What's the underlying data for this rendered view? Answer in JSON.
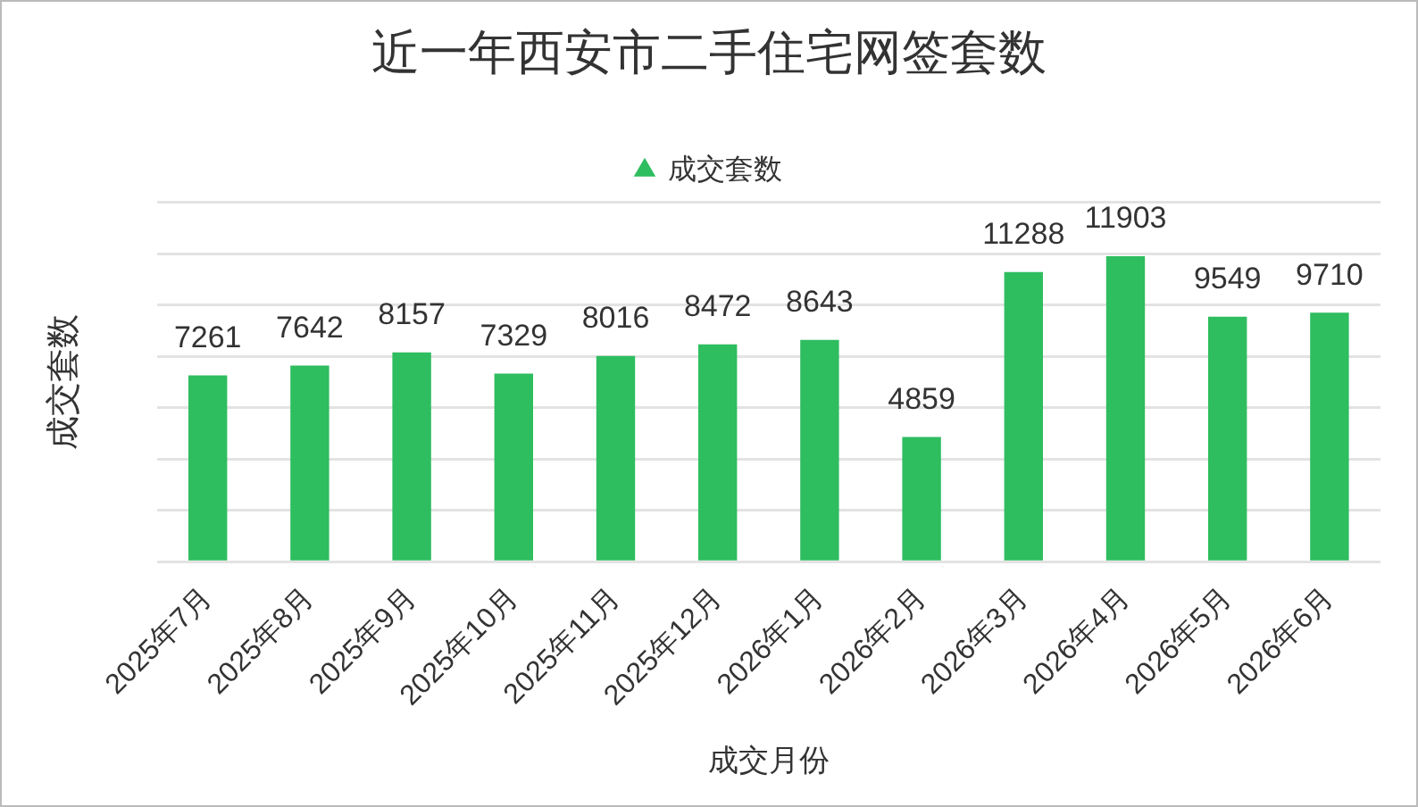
{
  "chart_data": {
    "type": "bar",
    "title": "近一年西安市二手住宅网签套数",
    "xlabel": "成交月份",
    "ylabel": "成交套数",
    "categories": [
      "2025年7月",
      "2025年8月",
      "2025年9月",
      "2025年10月",
      "2025年11月",
      "2025年12月",
      "2026年1月",
      "2026年2月",
      "2026年3月",
      "2026年4月",
      "2026年5月",
      "2026年6月"
    ],
    "series": [
      {
        "name": "成交套数",
        "color": "#2ebd5f",
        "values": [
          7261,
          7642,
          8157,
          7329,
          8016,
          8472,
          8643,
          4859,
          11288,
          11903,
          9549,
          9710
        ]
      }
    ],
    "ylim": [
      0,
      14000
    ],
    "yticks": [
      {
        "value": 0,
        "label": null
      },
      {
        "value": 2000,
        "label": null
      },
      {
        "value": 4000,
        "label": null
      },
      {
        "value": 6000,
        "label": null
      },
      {
        "value": 8000,
        "label": null
      },
      {
        "value": 10000,
        "label": null
      },
      {
        "value": 12000,
        "label": null
      },
      {
        "value": 14000,
        "label": null
      }
    ],
    "tick_labels": "x",
    "grid": "y",
    "legend": "top",
    "marker": "triangle",
    "data_labels": true
  }
}
